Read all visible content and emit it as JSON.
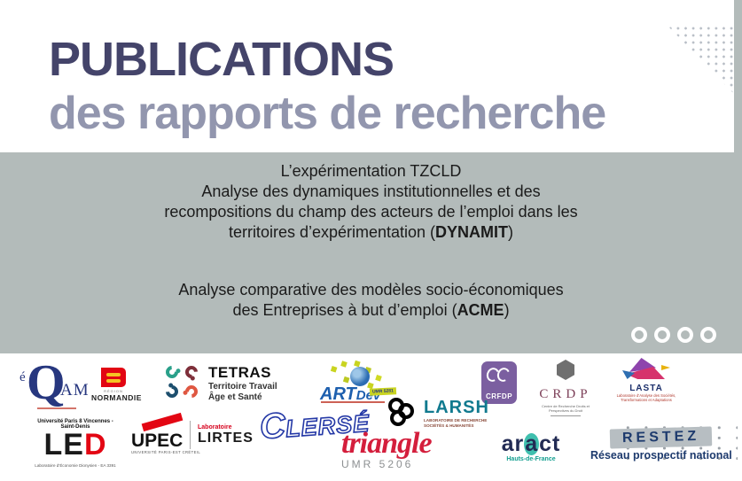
{
  "header": {
    "title": "PUBLICATIONS",
    "subtitle": "des rapports de recherche"
  },
  "banner": {
    "report1": {
      "title": "L’expérimentation TZCLD",
      "line1": "Analyse des dynamiques institutionnelles et des",
      "line2": "recompositions du champ des acteurs de l’emploi dans les",
      "line3_prefix": "territoires d’expérimentation (",
      "acronym": "DYNAMIT",
      "line3_suffix": ")"
    },
    "report2": {
      "line1": "Analyse comparative des modèles socio-économiques",
      "line2_prefix": "des Entreprises à but d’emploi (",
      "acronym": "ACME",
      "line2_suffix": ")"
    },
    "pager_dots": 4
  },
  "colors": {
    "title": "#44446a",
    "subtitle": "#9296ae",
    "band_background": "#b3bbba",
    "band_text": "#1b1b1b",
    "accent_red": "#e30613",
    "accent_blue": "#1d5fae"
  },
  "logos": {
    "eqam": {
      "e": "é",
      "q": "Q",
      "am": "AM"
    },
    "normandie": {
      "region": "RÉGION",
      "name": "NORMANDIE"
    },
    "tetras": {
      "name": "TETRAS",
      "line1": "Territoire Travail",
      "line2": "Âge et Santé"
    },
    "artdev": {
      "art": "ART",
      "dev": "Dev",
      "umr": "UMR 5281"
    },
    "crfdp": {
      "name": "CRFDP"
    },
    "crdp": {
      "name": "CRDP",
      "subtitle": "Centre de Recherche Droits et Perspectives du Droit"
    },
    "lasta": {
      "name": "LASTA",
      "subtitle1": "Laboratoire d’Analyse des Sociétés,",
      "subtitle2": "Transformations et Adaptations"
    },
    "led": {
      "university": "Université Paris 8 Vincennes - Saint-Denis",
      "le": "LE",
      "d": "D",
      "subtitle": "Laboratoire d’Économie Dionysien - EA 3391"
    },
    "upec": {
      "name": "UPEC",
      "tagline": "UNIVERSITÉ PARIS-EST CRÉTEIL",
      "lab": "Laboratoire",
      "lirtes": "LIRTES"
    },
    "clerse": {
      "c": "C",
      "rest": "LERSÉ"
    },
    "triangle": {
      "name": "triangle",
      "umr": "UMR 5206"
    },
    "larsh": {
      "name": "LARSH",
      "subtitle1": "LABORATOIRE DE RECHERCHE",
      "subtitle2": "SOCIÉTÉS & HUMANITÉS"
    },
    "aract": {
      "part1": "ar",
      "part2": "a",
      "part3": "ct",
      "region": "Hauts-de-France"
    },
    "restez": {
      "name": "RESTEZ",
      "subtitle": "Réseau prospectif national"
    }
  }
}
